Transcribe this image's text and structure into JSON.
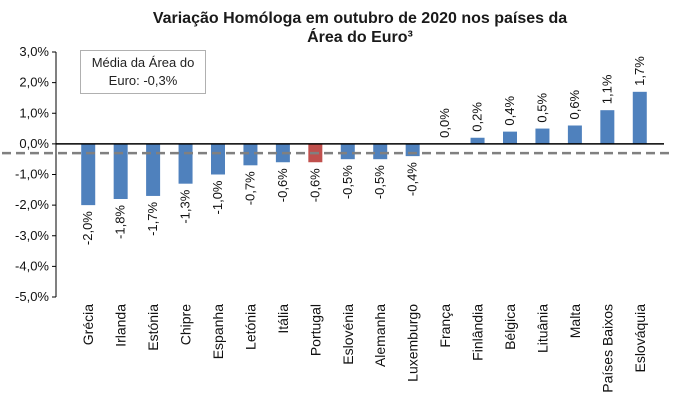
{
  "chart_data": {
    "type": "bar",
    "title_line1": "Variação Homóloga em outubro de 2020 nos países da",
    "title_line2": "Área do Euro³",
    "categories": [
      "Grécia",
      "Irlanda",
      "Estónia",
      "Chipre",
      "Espanha",
      "Letónia",
      "Itália",
      "Portugal",
      "Eslovénia",
      "Alemanha",
      "Luxemburgo",
      "França",
      "Finlândia",
      "Bélgica",
      "Lituânia",
      "Malta",
      "Países Baixos",
      "Eslováquia"
    ],
    "values": [
      -2.0,
      -1.8,
      -1.7,
      -1.3,
      -1.0,
      -0.7,
      -0.6,
      -0.6,
      -0.5,
      -0.5,
      -0.4,
      0.0,
      0.2,
      0.4,
      0.5,
      0.6,
      1.1,
      1.7
    ],
    "data_labels": [
      "-2,0%",
      "-1,8%",
      "-1,7%",
      "-1,3%",
      "-1,0%",
      "-0,7%",
      "-0,6%",
      "-0,6%",
      "-0,5%",
      "-0,5%",
      "-0,4%",
      "0,0%",
      "0,2%",
      "0,4%",
      "0,5%",
      "0,6%",
      "1,1%",
      "1,7%"
    ],
    "y_ticks": [
      3.0,
      2.0,
      1.0,
      0.0,
      -1.0,
      -2.0,
      -3.0,
      -4.0,
      -5.0
    ],
    "y_tick_labels": [
      "3,0%",
      "2,0%",
      "1,0%",
      "0,0%",
      "-1,0%",
      "-2,0%",
      "-3,0%",
      "-4,0%",
      "-5,0%"
    ],
    "ylim": [
      -5.0,
      3.0
    ],
    "highlight_category": "Portugal",
    "reference_line": {
      "value": -0.3,
      "style": "dashed"
    },
    "annotation_line1": "Média da Área do",
    "annotation_line2": "Euro: -0,3%",
    "colors": {
      "bar": "#4f81bd",
      "highlight": "#c0504d",
      "reference": "#808080",
      "zero_line": "#000000"
    },
    "grid": false,
    "legend": "none"
  }
}
